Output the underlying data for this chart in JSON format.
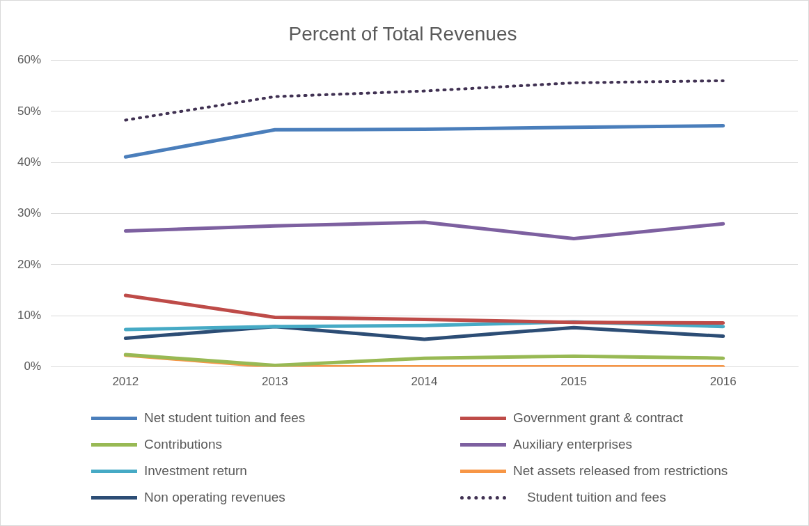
{
  "chart_data": {
    "type": "line",
    "title": "Percent of Total Revenues",
    "categories": [
      "2012",
      "2013",
      "2014",
      "2015",
      "2016"
    ],
    "ylim": [
      0,
      60
    ],
    "yticks": [
      {
        "value": 0,
        "label": "0%"
      },
      {
        "value": 10,
        "label": "10%"
      },
      {
        "value": 20,
        "label": "20%"
      },
      {
        "value": 30,
        "label": "30%"
      },
      {
        "value": 40,
        "label": "40%"
      },
      {
        "value": 50,
        "label": "50%"
      },
      {
        "value": 60,
        "label": "60%"
      }
    ],
    "grid": "y",
    "legend": "bottom",
    "marker": "none",
    "series": [
      {
        "name": "Net student tuition and fees",
        "color": "#4a7ebb",
        "values": [
          41.1,
          46.4,
          46.5,
          46.9,
          47.2
        ]
      },
      {
        "name": "Government grant & contract",
        "color": "#be4b48",
        "values": [
          14.0,
          9.7,
          9.3,
          8.7,
          8.6
        ]
      },
      {
        "name": "Contributions",
        "color": "#98b954",
        "values": [
          2.4,
          0.3,
          1.7,
          2.1,
          1.7
        ]
      },
      {
        "name": "Auxiliary enterprises",
        "color": "#7d60a0",
        "values": [
          26.6,
          27.6,
          28.3,
          25.1,
          28.0
        ]
      },
      {
        "name": "Investment return",
        "color": "#46aac5",
        "values": [
          7.3,
          7.9,
          8.1,
          8.8,
          7.9
        ]
      },
      {
        "name": "Net assets released from restrictions",
        "color": "#f79646",
        "values": [
          2.3,
          0,
          0,
          0,
          0
        ]
      },
      {
        "name": "Non operating revenues",
        "color": "#2c4d75",
        "values": [
          5.6,
          7.9,
          5.4,
          7.7,
          6.0
        ]
      },
      {
        "name": "Student tuition and fees",
        "color": "#403152",
        "line_style": "dotted",
        "values": [
          48.3,
          52.9,
          54.0,
          55.6,
          56.0
        ]
      }
    ]
  }
}
